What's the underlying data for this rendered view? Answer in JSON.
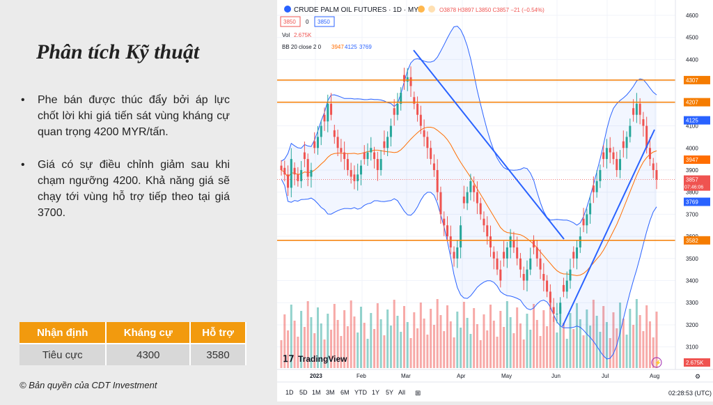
{
  "slide": {
    "title": "Phân tích Kỹ thuật",
    "bullets": [
      "Phe bán được thúc đẩy bởi áp lực chốt lời khi giá tiến sát vùng kháng cự quan trọng 4200 MYR/tấn.",
      "Giá có sự điều chỉnh giảm sau khi chạm ngưỡng 4200. Khả năng giá sẽ chạy tới vùng hỗ trợ tiếp theo tại giá 3700."
    ],
    "bullet_glyph": "•",
    "table": {
      "headers": [
        "Nhận định",
        "Kháng cự",
        "Hỗ trợ"
      ],
      "row": [
        "Tiêu cực",
        "4300",
        "3580"
      ]
    },
    "copyright": "© Bản quyền của CDT Investment",
    "accent_color": "#f29a0e"
  },
  "chart": {
    "symbol_title": "CRUDE PALM OIL FUTURES · 1D · MYX",
    "ohlc": "O3878 H3897 L3850 C3857 −21 (−0.54%)",
    "bid": "3850",
    "spread": "0",
    "ask": "3850",
    "volume_label": "Vol",
    "volume_value": "2.675K",
    "bb_label": "BB 20 close 2 0",
    "bb_mid": "3947",
    "bb_upper": "4125",
    "bb_lower": "3769",
    "price_ticks": [
      "4600",
      "4500",
      "4400",
      "4300",
      "4200",
      "4100",
      "4000",
      "3900",
      "3800",
      "3700",
      "3600",
      "3500",
      "3400",
      "3300",
      "3200",
      "3100"
    ],
    "price_tags": {
      "r4307": "4307",
      "r4207": "4207",
      "bbu": "4125",
      "bbm": "3947",
      "last": "3857",
      "last_time": "07:46:06",
      "bbl": "3769",
      "s3582": "3582",
      "vol": "2.675K"
    },
    "month_labels": [
      "2023",
      "Feb",
      "Mar",
      "Apr",
      "May",
      "Jun",
      "Jul",
      "Aug"
    ],
    "logo": "TradingView",
    "timeframes": [
      "1D",
      "5D",
      "1M",
      "3M",
      "6M",
      "YTD",
      "1Y",
      "5Y",
      "All"
    ],
    "clock": "02:28:53 (UTC)",
    "colors": {
      "up": "#26a69a",
      "down": "#ef5350",
      "bb": "#2962ff",
      "basis": "#ff6d00",
      "hline": "#f57c00",
      "trend": "#2962ff"
    }
  },
  "chart_data": {
    "type": "candlestick",
    "title": "CRUDE PALM OIL FUTURES · 1D · MYX",
    "ylim": [
      3050,
      4650
    ],
    "horizontal_levels": [
      4307,
      4207,
      3582
    ],
    "close_approx": [
      3900,
      3880,
      3820,
      3950,
      3880,
      3850,
      3900,
      3950,
      3870,
      3900,
      4000,
      4050,
      4100,
      4120,
      4200,
      4150,
      4050,
      4000,
      3980,
      3950,
      3900,
      3870,
      3850,
      3880,
      3920,
      3950,
      3980,
      4000,
      3950,
      3900,
      3950,
      4000,
      4050,
      4100,
      4150,
      4200,
      4250,
      4300,
      4320,
      4280,
      4200,
      4150,
      4100,
      4050,
      4000,
      3950,
      3900,
      3800,
      3700,
      3650,
      3600,
      3550,
      3500,
      3550,
      3650,
      3750,
      3800,
      3850,
      3800,
      3750,
      3700,
      3650,
      3600,
      3550,
      3500,
      3450,
      3400,
      3500,
      3550,
      3600,
      3550,
      3500,
      3450,
      3400,
      3450,
      3500,
      3550,
      3500,
      3450,
      3400,
      3350,
      3300,
      3250,
      3250,
      3300,
      3350,
      3400,
      3450,
      3500,
      3550,
      3600,
      3650,
      3700,
      3750,
      3800,
      3850,
      3900,
      3950,
      4000,
      3980,
      3950,
      3900,
      3950,
      4000,
      4050,
      4100,
      4150,
      4200,
      4150,
      4100,
      4000,
      3950,
      3900,
      3857
    ]
  }
}
